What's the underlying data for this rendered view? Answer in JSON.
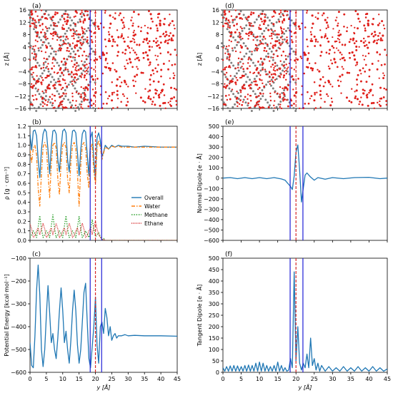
{
  "figure": {
    "x_label": "y [Å]",
    "x_ticks": [
      0,
      5,
      10,
      15,
      20,
      25,
      30,
      35,
      40,
      45
    ],
    "interface_lines": {
      "blue": [
        18.4,
        21.9
      ],
      "red_dashed": [
        20.0
      ],
      "blue_color": "#1f1fd6",
      "red_color": "#d62728"
    },
    "series_colors": {
      "overall": "#1f77b4",
      "water": "#ff7f0e",
      "methane": "#2ca02c",
      "ethane": "#d62728"
    }
  },
  "chart_data": [
    {
      "id": "a",
      "panel_label": "(a)",
      "type": "scatter",
      "ylabel": "z [Å]",
      "xlim": [
        0,
        45
      ],
      "ylim": [
        -16,
        16
      ],
      "y_ticks": [
        -16,
        -12,
        -8,
        -4,
        0,
        4,
        8,
        12,
        16
      ]
    },
    {
      "id": "d",
      "panel_label": "(d)",
      "type": "scatter",
      "ylabel": "z [Å]",
      "xlim": [
        0,
        45
      ],
      "ylim": [
        -16,
        16
      ],
      "y_ticks": [
        -16,
        -12,
        -8,
        -4,
        0,
        4,
        8,
        12,
        16
      ]
    },
    {
      "id": "b",
      "panel_label": "(b)",
      "type": "line",
      "ylabel": "ρ [g · cm⁻³]",
      "xlim": [
        0,
        45
      ],
      "ylim": [
        0,
        1.2
      ],
      "y_ticks": [
        0.0,
        0.1,
        0.2,
        0.3,
        0.4,
        0.5,
        0.6,
        0.7,
        0.8,
        0.9,
        1.0,
        1.1,
        1.2
      ],
      "legend": "lower-right",
      "series": [
        {
          "name": "Overall",
          "key": "overall",
          "dash": "solid",
          "x": [
            0,
            0.5,
            1,
            1.5,
            2,
            2.5,
            3,
            3.5,
            4,
            4.5,
            5,
            5.5,
            6,
            6.5,
            7,
            7.5,
            8,
            8.5,
            9,
            9.5,
            10,
            10.5,
            11,
            11.5,
            12,
            12.5,
            13,
            13.5,
            14,
            14.5,
            15,
            15.5,
            16,
            16.5,
            17,
            17.5,
            18,
            18.5,
            19,
            19.5,
            20,
            20.5,
            21,
            21.5,
            22,
            22.5,
            23,
            24,
            25,
            26,
            27,
            28,
            30,
            32,
            35,
            40,
            45
          ],
          "y": [
            1.12,
            0.95,
            1.15,
            1.16,
            1.1,
            0.85,
            0.66,
            0.95,
            1.12,
            1.17,
            1.14,
            0.95,
            0.7,
            0.98,
            1.15,
            1.16,
            1.12,
            0.85,
            0.72,
            0.98,
            1.15,
            1.17,
            1.13,
            0.85,
            0.72,
            0.98,
            1.15,
            1.16,
            1.13,
            0.92,
            0.68,
            0.95,
            1.12,
            1.16,
            1.14,
            0.9,
            0.68,
            1.08,
            1.14,
            0.85,
            0.65,
            1.08,
            1.13,
            1.05,
            0.88,
            0.93,
            1.0,
            0.96,
            1.0,
            0.98,
            1.0,
            0.99,
            0.99,
            0.98,
            0.99,
            0.98,
            0.98
          ]
        },
        {
          "name": "Water",
          "key": "water",
          "dash": "dashdot",
          "x": [
            0,
            0.5,
            1,
            1.5,
            2,
            2.5,
            3,
            3.5,
            4,
            4.5,
            5,
            5.5,
            6,
            6.5,
            7,
            7.5,
            8,
            8.5,
            9,
            9.5,
            10,
            10.5,
            11,
            11.5,
            12,
            12.5,
            13,
            13.5,
            14,
            14.5,
            15,
            15.5,
            16,
            16.5,
            17,
            17.5,
            18,
            18.5,
            19,
            19.5,
            20,
            20.5,
            21,
            21.5,
            22,
            22.5,
            23,
            24,
            25,
            26,
            27,
            28,
            30,
            32,
            35,
            40,
            45
          ],
          "y": [
            0.95,
            0.82,
            0.97,
            1.0,
            0.9,
            0.55,
            0.36,
            0.7,
            0.98,
            1.03,
            0.98,
            0.7,
            0.45,
            0.8,
            1.0,
            1.03,
            0.97,
            0.65,
            0.48,
            0.82,
            1.0,
            1.03,
            0.97,
            0.65,
            0.5,
            0.82,
            1.0,
            1.03,
            0.97,
            0.7,
            0.36,
            0.78,
            1.0,
            1.03,
            0.98,
            0.7,
            0.55,
            0.95,
            1.02,
            0.72,
            0.6,
            0.98,
            1.05,
            0.98,
            0.85,
            0.92,
            0.98,
            0.96,
            0.99,
            0.98,
            0.99,
            0.98,
            0.98,
            0.98,
            0.98,
            0.98,
            0.98
          ]
        },
        {
          "name": "Methane",
          "key": "methane",
          "dash": "dotted",
          "x": [
            0,
            0.5,
            1,
            1.5,
            2,
            2.5,
            3,
            3.5,
            4,
            4.5,
            5,
            5.5,
            6,
            6.5,
            7,
            7.5,
            8,
            8.5,
            9,
            9.5,
            10,
            10.5,
            11,
            11.5,
            12,
            12.5,
            13,
            13.5,
            14,
            14.5,
            15,
            15.5,
            16,
            16.5,
            17,
            17.5,
            18,
            18.5,
            19,
            19.5,
            20,
            20.5,
            21,
            21.5,
            22,
            22.5,
            23,
            24,
            25,
            30,
            35,
            40,
            45
          ],
          "y": [
            0.03,
            0.06,
            0.1,
            0.07,
            0.03,
            0.14,
            0.26,
            0.12,
            0.03,
            0.06,
            0.1,
            0.07,
            0.03,
            0.15,
            0.27,
            0.13,
            0.03,
            0.06,
            0.1,
            0.07,
            0.03,
            0.15,
            0.26,
            0.12,
            0.03,
            0.06,
            0.1,
            0.07,
            0.03,
            0.14,
            0.25,
            0.12,
            0.03,
            0.06,
            0.1,
            0.07,
            0.03,
            0.1,
            0.22,
            0.12,
            0.04,
            0.06,
            0.08,
            0.04,
            0.01,
            0.02,
            0.0,
            0.0,
            0.0,
            0.0,
            0.0,
            0.0,
            0.0
          ]
        },
        {
          "name": "Ethane",
          "key": "ethane",
          "dash": "densedot",
          "x": [
            0,
            0.5,
            1,
            1.5,
            2,
            2.5,
            3,
            3.5,
            4,
            4.5,
            5,
            5.5,
            6,
            6.5,
            7,
            7.5,
            8,
            8.5,
            9,
            9.5,
            10,
            10.5,
            11,
            11.5,
            12,
            12.5,
            13,
            13.5,
            14,
            14.5,
            15,
            15.5,
            16,
            16.5,
            17,
            17.5,
            18,
            18.5,
            19,
            19.5,
            20,
            20.5,
            21,
            21.5,
            22,
            22.5,
            23,
            24,
            25,
            30,
            35,
            40,
            45
          ],
          "y": [
            0.17,
            0.12,
            0.03,
            0.05,
            0.1,
            0.13,
            0.06,
            0.12,
            0.18,
            0.12,
            0.03,
            0.05,
            0.1,
            0.13,
            0.06,
            0.12,
            0.18,
            0.12,
            0.03,
            0.05,
            0.1,
            0.13,
            0.06,
            0.12,
            0.18,
            0.12,
            0.03,
            0.05,
            0.1,
            0.13,
            0.06,
            0.12,
            0.18,
            0.12,
            0.03,
            0.05,
            0.1,
            0.13,
            0.06,
            0.14,
            0.2,
            0.12,
            0.06,
            0.03,
            0.01,
            0.01,
            0.0,
            0.0,
            0.0,
            0.0,
            0.0,
            0.0,
            0.0
          ]
        }
      ]
    },
    {
      "id": "c",
      "panel_label": "(c)",
      "type": "line",
      "ylabel": "Potential Energy [kcal·mol⁻¹]",
      "xlim": [
        0,
        45
      ],
      "ylim": [
        -600,
        -100
      ],
      "y_ticks": [
        -600,
        -500,
        -400,
        -300,
        -200,
        -100
      ],
      "series": [
        {
          "name": "",
          "key": "overall",
          "dash": "solid",
          "x": [
            0,
            0.5,
            1,
            1.5,
            2,
            2.5,
            3,
            3.5,
            4,
            4.5,
            5,
            5.5,
            6,
            6.5,
            7,
            7.5,
            8,
            8.5,
            9,
            9.5,
            10,
            10.5,
            11,
            11.5,
            12,
            12.5,
            13,
            13.5,
            14,
            14.5,
            15,
            15.5,
            16,
            16.5,
            17,
            17.5,
            18,
            18.5,
            19,
            19.5,
            20,
            20.5,
            21,
            21.5,
            22,
            22.5,
            23,
            23.5,
            24,
            24.5,
            25,
            25.5,
            26,
            26.5,
            27,
            28,
            29,
            30,
            32,
            35,
            40,
            45
          ],
          "y": [
            -470,
            -570,
            -580,
            -440,
            -240,
            -130,
            -260,
            -500,
            -575,
            -500,
            -350,
            -220,
            -340,
            -470,
            -430,
            -500,
            -540,
            -450,
            -330,
            -230,
            -330,
            -470,
            -420,
            -500,
            -560,
            -460,
            -330,
            -240,
            -330,
            -480,
            -560,
            -500,
            -380,
            -250,
            -210,
            -380,
            -540,
            -580,
            -490,
            -400,
            -270,
            -480,
            -560,
            -400,
            -380,
            -430,
            -320,
            -360,
            -440,
            -400,
            -460,
            -440,
            -430,
            -450,
            -440,
            -440,
            -435,
            -440,
            -438,
            -440,
            -440,
            -442
          ]
        }
      ]
    },
    {
      "id": "e",
      "panel_label": "(e)",
      "type": "line",
      "ylabel": "Normal Dipole [e · Å]",
      "xlim": [
        0,
        45
      ],
      "ylim": [
        -600,
        500
      ],
      "y_ticks": [
        -600,
        -500,
        -400,
        -300,
        -200,
        -100,
        0,
        100,
        200,
        300,
        400,
        500
      ],
      "series": [
        {
          "name": "",
          "key": "overall",
          "dash": "solid",
          "x": [
            0,
            2,
            4,
            6,
            8,
            10,
            12,
            14,
            16,
            17,
            18,
            18.5,
            19,
            19.5,
            20,
            20.5,
            21,
            21.5,
            22,
            22.5,
            23,
            24,
            25,
            26,
            28,
            30,
            33,
            36,
            40,
            43,
            45
          ],
          "y": [
            0,
            5,
            -5,
            5,
            -5,
            5,
            -5,
            5,
            -8,
            -20,
            -60,
            -80,
            -110,
            20,
            250,
            320,
            80,
            -230,
            -100,
            30,
            50,
            10,
            -20,
            5,
            -10,
            5,
            -5,
            5,
            8,
            -5,
            0
          ]
        }
      ]
    },
    {
      "id": "f",
      "panel_label": "(f)",
      "type": "line",
      "ylabel": "Tangent Dipole [e · Å]",
      "xlim": [
        0,
        45
      ],
      "ylim": [
        0,
        500
      ],
      "y_ticks": [
        0,
        50,
        100,
        150,
        200,
        250,
        300,
        350,
        400,
        450,
        500
      ],
      "series": [
        {
          "name": "",
          "key": "overall",
          "dash": "solid",
          "x": [
            0,
            0.5,
            1,
            1.5,
            2,
            2.5,
            3,
            3.5,
            4,
            4.5,
            5,
            5.5,
            6,
            6.5,
            7,
            7.5,
            8,
            8.5,
            9,
            9.5,
            10,
            10.5,
            11,
            11.5,
            12,
            12.5,
            13,
            13.5,
            14,
            14.5,
            15,
            15.5,
            16,
            16.5,
            17,
            17.5,
            18,
            18.5,
            19,
            19.5,
            20,
            20.5,
            21,
            21.5,
            22,
            22.5,
            23,
            23.5,
            24,
            24.5,
            25,
            25.5,
            26,
            26.5,
            27,
            28,
            29,
            30,
            31,
            32,
            33,
            34,
            35,
            36,
            37,
            38,
            39,
            40,
            41,
            42,
            43,
            44,
            45
          ],
          "y": [
            20,
            5,
            25,
            5,
            28,
            5,
            30,
            5,
            28,
            5,
            25,
            5,
            30,
            5,
            32,
            5,
            30,
            5,
            40,
            5,
            45,
            5,
            40,
            5,
            30,
            5,
            25,
            5,
            30,
            5,
            45,
            5,
            30,
            5,
            20,
            5,
            10,
            60,
            20,
            440,
            50,
            200,
            40,
            10,
            40,
            20,
            80,
            20,
            150,
            30,
            60,
            10,
            40,
            5,
            30,
            5,
            25,
            5,
            20,
            5,
            25,
            5,
            20,
            5,
            25,
            5,
            20,
            5,
            25,
            5,
            20,
            5,
            15
          ]
        }
      ]
    }
  ]
}
